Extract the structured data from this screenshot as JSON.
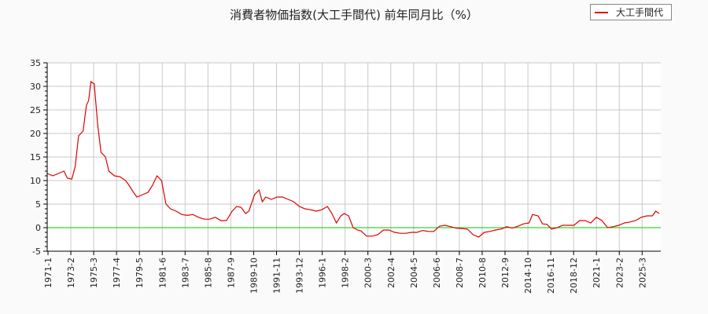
{
  "chart_data": {
    "type": "line",
    "title": "消費者物価指数(大工手間代) 前年同月比（%）",
    "xlabel": "",
    "ylabel": "",
    "ylim": [
      -5,
      35
    ],
    "yticks": [
      -5,
      0,
      5,
      10,
      15,
      20,
      25,
      30,
      35
    ],
    "xtick_labels": [
      "1971-1",
      "1973-2",
      "1975-3",
      "1977-4",
      "1979-5",
      "1981-6",
      "1983-7",
      "1985-8",
      "1987-9",
      "1989-10",
      "1991-11",
      "1993-12",
      "1996-1",
      "1998-2",
      "2000-3",
      "2002-4",
      "2004-5",
      "2006-6",
      "2008-7",
      "2010-8",
      "2012-9",
      "2014-10",
      "2016-11",
      "2018-12",
      "2021-1",
      "2023-2",
      "2025-3"
    ],
    "grid": true,
    "legend_position": "top-right",
    "reference_line": {
      "y": 0,
      "color": "#00cc00"
    },
    "series": [
      {
        "name": "大工手間代",
        "color": "#e00000",
        "x": [
          1971.0,
          1971.5,
          1972.0,
          1972.5,
          1972.8,
          1973.2,
          1973.5,
          1973.8,
          1974.2,
          1974.5,
          1974.7,
          1974.9,
          1975.2,
          1975.5,
          1975.8,
          1976.2,
          1976.5,
          1977.0,
          1977.5,
          1978.0,
          1978.3,
          1978.7,
          1979.0,
          1979.5,
          1980.0,
          1980.4,
          1980.8,
          1981.2,
          1981.6,
          1982.0,
          1982.5,
          1983.0,
          1983.5,
          1984.0,
          1984.5,
          1985.0,
          1985.5,
          1986.0,
          1986.5,
          1987.0,
          1987.5,
          1987.9,
          1988.3,
          1988.7,
          1989.0,
          1989.5,
          1989.9,
          1990.2,
          1990.5,
          1991.0,
          1991.5,
          1992.0,
          1992.5,
          1993.0,
          1993.5,
          1994.0,
          1994.5,
          1995.0,
          1995.5,
          1996.0,
          1996.4,
          1996.8,
          1997.2,
          1997.5,
          1997.9,
          1998.3,
          1998.7,
          1999.0,
          1999.5,
          2000.0,
          2000.5,
          2001.0,
          2001.5,
          2002.0,
          2002.5,
          2003.0,
          2003.5,
          2004.0,
          2004.5,
          2005.0,
          2005.5,
          2006.0,
          2006.5,
          2007.0,
          2007.5,
          2008.0,
          2008.5,
          2009.0,
          2009.5,
          2010.0,
          2010.5,
          2011.0,
          2011.5,
          2012.0,
          2012.5,
          2013.0,
          2013.5,
          2014.0,
          2014.3,
          2014.8,
          2015.2,
          2015.6,
          2016.0,
          2016.5,
          2017.0,
          2017.5,
          2018.0,
          2018.5,
          2019.0,
          2019.5,
          2020.0,
          2020.5,
          2021.0,
          2021.5,
          2022.0,
          2022.5,
          2023.0,
          2023.5,
          2024.0,
          2024.5,
          2025.0,
          2025.3,
          2025.6
        ],
        "values": [
          11.5,
          11,
          11.5,
          12,
          10.5,
          10.3,
          13,
          19.5,
          20.5,
          26,
          27,
          31,
          30.5,
          22,
          16,
          15,
          12,
          11,
          10.8,
          10,
          9,
          7.5,
          6.5,
          7,
          7.5,
          9,
          11,
          10,
          5,
          4,
          3.5,
          2.8,
          2.6,
          2.8,
          2.2,
          1.8,
          1.8,
          2.2,
          1.5,
          1.5,
          3.5,
          4.5,
          4.3,
          3,
          3.5,
          7,
          8,
          5.5,
          6.5,
          6,
          6.5,
          6.5,
          6,
          5.5,
          4.5,
          4,
          3.8,
          3.5,
          3.8,
          4.5,
          3,
          1,
          2.5,
          3,
          2.5,
          0,
          -0.5,
          -0.7,
          -1.8,
          -1.8,
          -1.5,
          -0.5,
          -0.5,
          -1,
          -1.2,
          -1.2,
          -1,
          -1,
          -0.6,
          -0.8,
          -0.8,
          0.3,
          0.5,
          0.2,
          -0.1,
          -0.2,
          -0.3,
          -1.5,
          -2.0,
          -1.0,
          -0.8,
          -0.5,
          -0.3,
          0.2,
          -0.1,
          0.3,
          0.8,
          1.0,
          2.8,
          2.5,
          0.8,
          0.7,
          -0.3,
          0.0,
          0.5,
          0.5,
          0.5,
          1.5,
          1.5,
          1.0,
          2.2,
          1.5,
          0.0,
          0.2,
          0.5,
          1.0,
          1.2,
          1.5,
          2.2,
          2.5,
          2.5,
          3.5,
          3.0
        ]
      }
    ]
  },
  "legend": {
    "label": "大工手間代"
  }
}
